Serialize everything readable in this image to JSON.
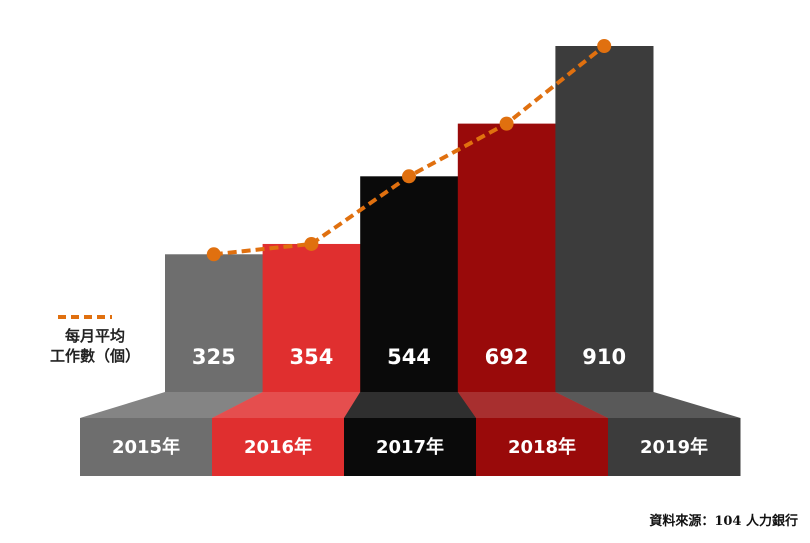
{
  "chart_data": {
    "type": "bar",
    "categories": [
      "2015年",
      "2016年",
      "2017年",
      "2018年",
      "2019年"
    ],
    "colors": [
      "#6e6e6e",
      "#e02f2f",
      "#0a0a0a",
      "#990a0a",
      "#3c3c3c"
    ],
    "series": [
      {
        "name": "每月平均\n工作數（個）",
        "color": "#e0700f",
        "values": [
          325,
          354,
          544,
          692,
          910
        ]
      }
    ],
    "source": "資料來源：104 人力銀行"
  }
}
